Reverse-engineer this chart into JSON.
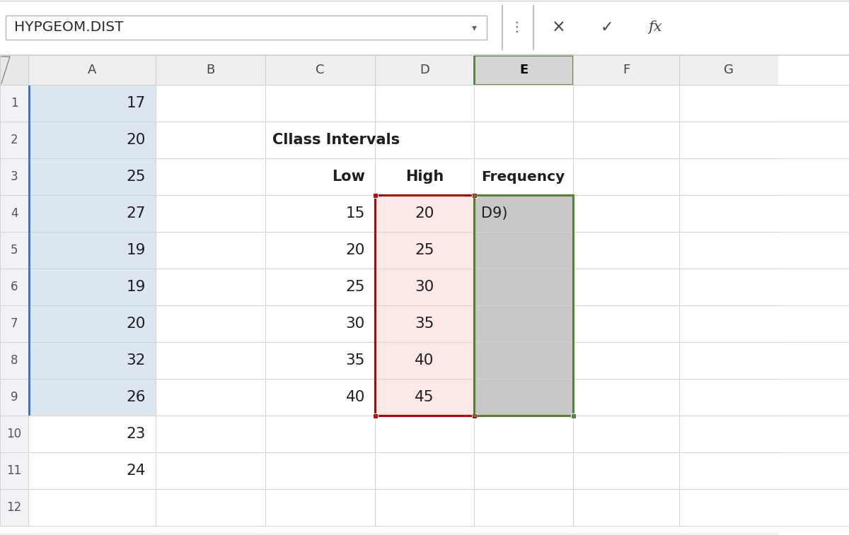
{
  "formula_bar_text": "HYPGEOM.DIST",
  "col_headers": [
    "",
    "A",
    "B",
    "C",
    "D",
    "E",
    "F",
    "G"
  ],
  "col_A_values": [
    "17",
    "20",
    "25",
    "27",
    "19",
    "19",
    "20",
    "32",
    "26",
    "23",
    "24",
    ""
  ],
  "col_C_header": "Cllass Intervals",
  "col_C_low_label": "Low",
  "col_D_high_label": "High",
  "col_E_freq_label": "Frequency",
  "low_values": [
    "15",
    "20",
    "25",
    "30",
    "35",
    "40"
  ],
  "high_values": [
    "20",
    "25",
    "30",
    "35",
    "40",
    "45"
  ],
  "freq_partial": "D9)",
  "bg_color": "#f2f2f2",
  "cell_white": "#ffffff",
  "cell_light_blue": "#dce6f1",
  "col_header_bg": "#efefef",
  "col_E_header_bg": "#d5d5d5",
  "grid_color": "#d0d0d0",
  "text_color": "#1f1f1f",
  "freq_col_bg": "#c8c8c8",
  "high_col_bg": "#fde8e8",
  "blue_border": "#4472c4",
  "d_sel_border": "#c00000",
  "e_sel_border": "#538135",
  "formula_bar_bg": "#ffffff",
  "formula_bar_separator": "#d0d0d0"
}
